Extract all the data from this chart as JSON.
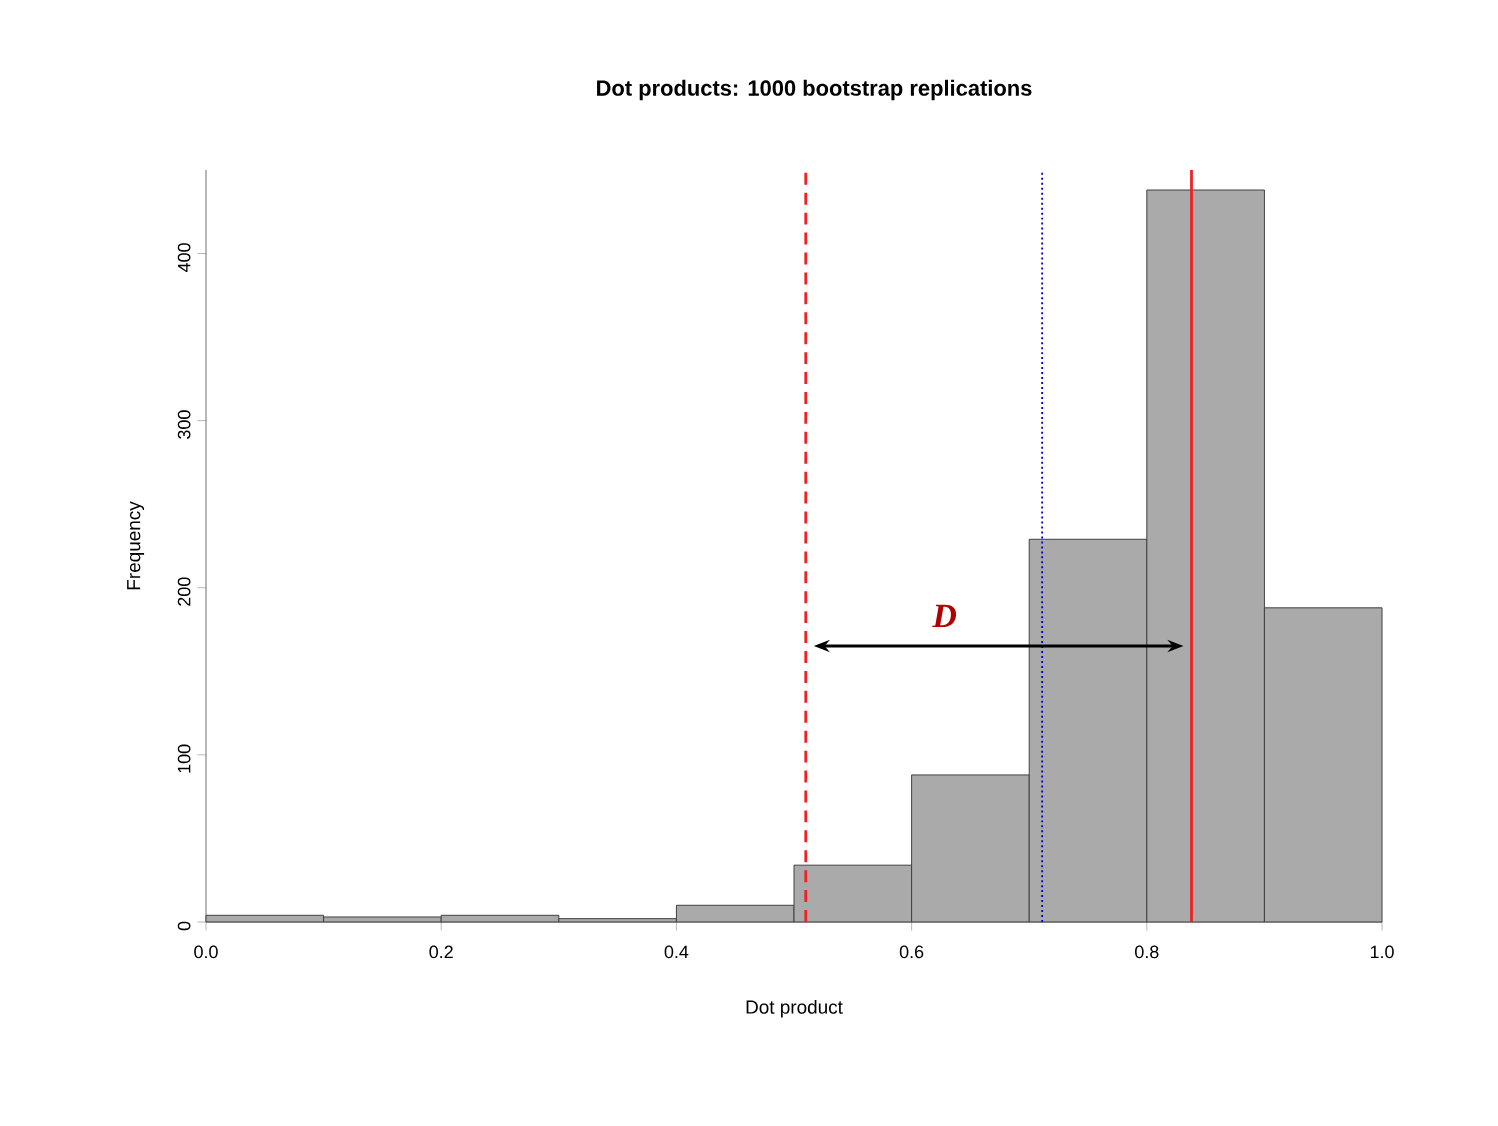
{
  "chart_data": {
    "type": "histogram",
    "title": "Dot products: 1000 bootstrap replications",
    "xlabel": "Dot product",
    "ylabel": "Frequency",
    "bins": [
      0.0,
      0.1,
      0.2,
      0.3,
      0.4,
      0.5,
      0.6,
      0.7,
      0.8,
      0.9,
      1.0
    ],
    "values": [
      4,
      3,
      4,
      2,
      10,
      34,
      88,
      229,
      438,
      188
    ],
    "color": "#aaaaaa",
    "xlim": [
      0,
      1
    ],
    "ylim": [
      0,
      450
    ],
    "xticks": [
      {
        "value": 0,
        "label": "0.0"
      },
      {
        "value": 0.2,
        "label": "0.2"
      },
      {
        "value": 0.4,
        "label": "0.4"
      },
      {
        "value": 0.6,
        "label": "0.6"
      },
      {
        "value": 0.8,
        "label": "0.8"
      },
      {
        "value": 1,
        "label": "1.0"
      }
    ],
    "yticks": [
      0,
      100,
      200,
      300,
      400
    ],
    "ref_lines": [
      {
        "axis": "x",
        "value": 0.51,
        "color": "#ee2222",
        "line_style": "dashed"
      },
      {
        "axis": "x",
        "value": 0.711,
        "color": "#0000cc",
        "line_style": "dotted"
      },
      {
        "axis": "x",
        "value": 0.838,
        "color": "#ee2222",
        "line_style": "solid"
      }
    ],
    "annotations": [
      "D"
    ]
  }
}
